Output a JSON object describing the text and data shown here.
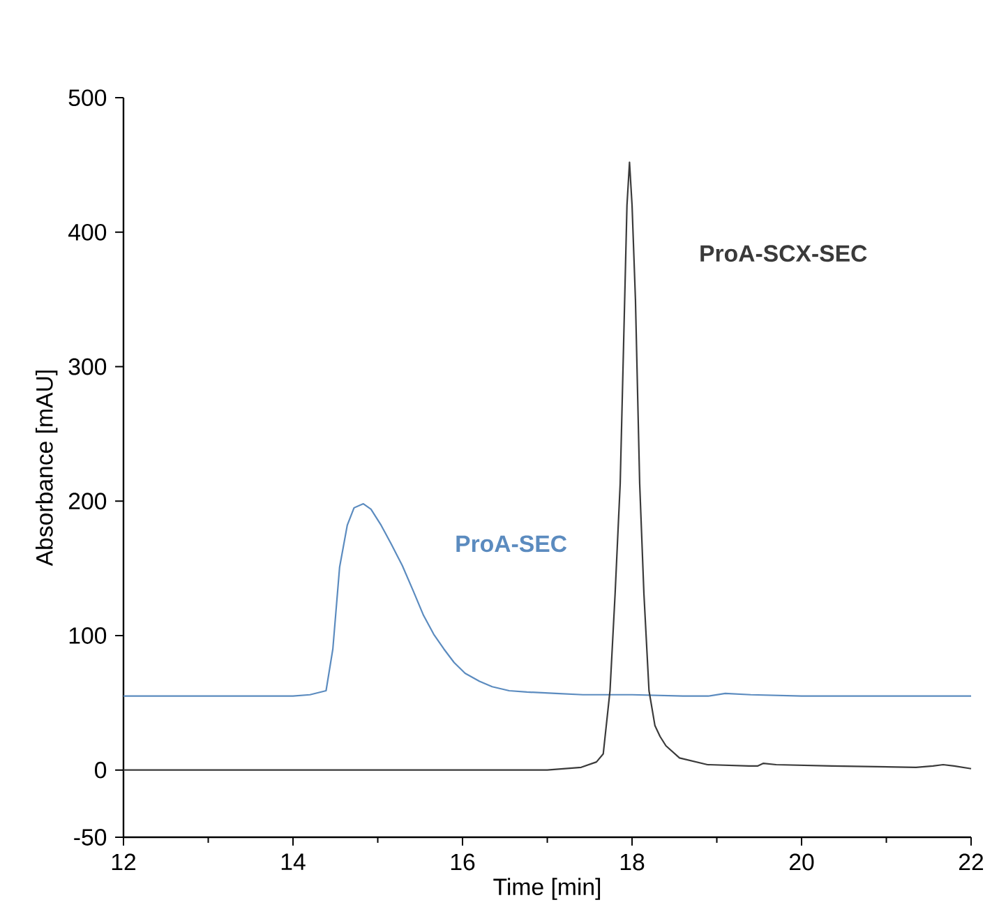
{
  "chart_data": {
    "type": "line",
    "xlabel": "Time [min]",
    "ylabel": "Absorbance [mAU]",
    "xlim": [
      12,
      22
    ],
    "ylim": [
      -50,
      500
    ],
    "xticks": [
      12,
      14,
      16,
      18,
      20,
      22
    ],
    "yticks": [
      -50,
      0,
      100,
      200,
      300,
      400,
      500
    ],
    "grid": false,
    "legend": false,
    "marker": "none",
    "line_style": "solid",
    "series": [
      {
        "name": "ProA-SEC",
        "color": "#5b8bbf",
        "x": [
          12,
          13,
          14,
          14.2,
          14.39,
          14.47,
          14.55,
          14.64,
          14.72,
          14.83,
          14.92,
          15.04,
          15.16,
          15.29,
          15.42,
          15.54,
          15.66,
          15.78,
          15.9,
          16.03,
          16.2,
          16.35,
          16.55,
          16.76,
          17.1,
          17.42,
          18,
          18.6,
          18.9,
          19.1,
          19.4,
          20,
          21,
          22
        ],
        "values": [
          55,
          55,
          55,
          56,
          59,
          90,
          151,
          182,
          195,
          198,
          194,
          182,
          168,
          152,
          133,
          115,
          101,
          90,
          80,
          72,
          66,
          62,
          59,
          58,
          57,
          56,
          56,
          55,
          55,
          57,
          56,
          55,
          55,
          55
        ]
      },
      {
        "name": "ProA-SCX-SEC",
        "color": "#3a3a3a",
        "x": [
          12,
          14,
          16,
          17,
          17.4,
          17.58,
          17.66,
          17.74,
          17.8,
          17.86,
          17.9,
          17.94,
          17.97,
          18.0,
          18.04,
          18.09,
          18.14,
          18.2,
          18.27,
          18.33,
          18.4,
          18.56,
          18.89,
          19.38,
          19.48,
          19.55,
          19.7,
          20.36,
          21.35,
          21.55,
          21.67,
          21.8,
          22
        ],
        "values": [
          0,
          0,
          0,
          0,
          2,
          6,
          12,
          59,
          131,
          213,
          316,
          420,
          452,
          420,
          350,
          213,
          131,
          59,
          33,
          25,
          18,
          9,
          4,
          3,
          3,
          5,
          4,
          3,
          2,
          3,
          4,
          3,
          1
        ]
      }
    ]
  }
}
